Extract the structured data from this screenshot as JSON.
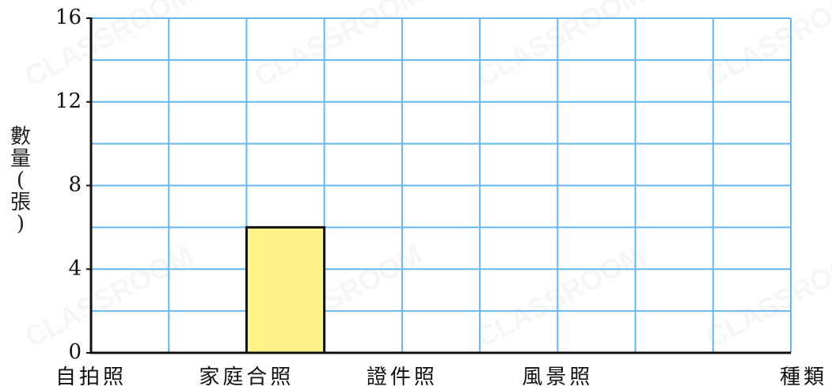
{
  "chart_data": {
    "type": "bar",
    "title": "",
    "ylabel": "數量(張)",
    "xlabel": "種類",
    "categories": [
      "",
      "自拍照",
      "",
      "家庭合照",
      "",
      "證件照",
      "",
      "風景照",
      "",
      "種類"
    ],
    "values": [
      null,
      null,
      null,
      6,
      null,
      null,
      null,
      null,
      null,
      null
    ],
    "ylim": [
      0,
      16
    ],
    "yticks": [
      "0",
      "4",
      "8",
      "12",
      "16"
    ],
    "ytick_values": [
      0,
      4,
      8,
      12,
      16
    ],
    "grid": true,
    "colors": {
      "bar": "#fff38a",
      "bar_stroke": "#111111",
      "grid": "#64b8ee",
      "axis": "#111111"
    }
  },
  "watermark": {
    "text": "CLASSROOM"
  }
}
